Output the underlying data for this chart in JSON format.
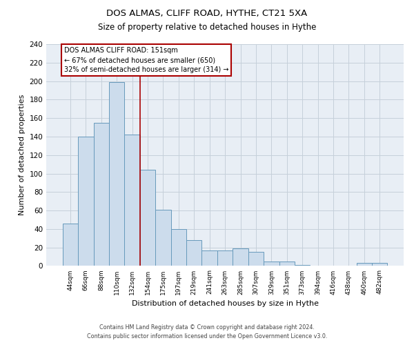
{
  "title1": "DOS ALMAS, CLIFF ROAD, HYTHE, CT21 5XA",
  "title2": "Size of property relative to detached houses in Hythe",
  "xlabel": "Distribution of detached houses by size in Hythe",
  "ylabel": "Number of detached properties",
  "bar_labels": [
    "44sqm",
    "66sqm",
    "88sqm",
    "110sqm",
    "132sqm",
    "154sqm",
    "175sqm",
    "197sqm",
    "219sqm",
    "241sqm",
    "263sqm",
    "285sqm",
    "307sqm",
    "329sqm",
    "351sqm",
    "373sqm",
    "394sqm",
    "416sqm",
    "438sqm",
    "460sqm",
    "482sqm"
  ],
  "bar_values": [
    46,
    140,
    155,
    199,
    142,
    104,
    61,
    40,
    28,
    17,
    17,
    19,
    15,
    5,
    5,
    1,
    0,
    0,
    0,
    3,
    3
  ],
  "bar_color": "#ccdcec",
  "bar_edge_color": "#6699bb",
  "vline_x": 4.5,
  "property_label": "DOS ALMAS CLIFF ROAD: 151sqm",
  "annotation_line1": "← 67% of detached houses are smaller (650)",
  "annotation_line2": "32% of semi-detached houses are larger (314) →",
  "vline_color": "#aa0000",
  "annotation_box_edge": "#aa0000",
  "ylim": [
    0,
    240
  ],
  "yticks": [
    0,
    20,
    40,
    60,
    80,
    100,
    120,
    140,
    160,
    180,
    200,
    220,
    240
  ],
  "footer1": "Contains HM Land Registry data © Crown copyright and database right 2024.",
  "footer2": "Contains public sector information licensed under the Open Government Licence v3.0.",
  "bg_color": "#ffffff",
  "plot_bg_color": "#e8eef5",
  "grid_color": "#c5d0da"
}
